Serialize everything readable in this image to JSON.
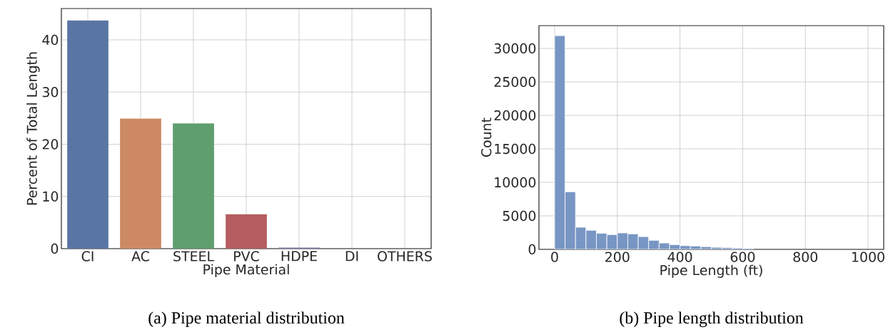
{
  "chart_data": [
    {
      "type": "bar",
      "xlabel": "Pipe Material",
      "ylabel": "Percent of Total Length",
      "categories": [
        "CI",
        "AC",
        "STEEL",
        "PVC",
        "HDPE",
        "DI",
        "OTHERS"
      ],
      "values": [
        43.7,
        24.9,
        24.0,
        6.6,
        0.2,
        null,
        null
      ],
      "colors": [
        "#5975a4",
        "#cc8963",
        "#5f9e6e",
        "#b55d60",
        "#857aab",
        "#8d7866",
        "#d095bf"
      ],
      "ylim": [
        0,
        46
      ],
      "yticks": [
        0,
        10,
        20,
        30,
        40
      ],
      "grid": true,
      "annotations": [
        "(a) Pipe material distribution"
      ]
    },
    {
      "type": "histogram",
      "xlabel": "Pipe Length (ft)",
      "ylabel": "Count",
      "color": "#7896c4",
      "bins": [
        0,
        33.33,
        66.67,
        100,
        133.33,
        166.67,
        200,
        233.33,
        266.67,
        300,
        333.33,
        366.67,
        400,
        433.33,
        466.67,
        500,
        533.33,
        566.67,
        600,
        633.33,
        666.67,
        700,
        733.33,
        766.67,
        800,
        833.33,
        866.67,
        900,
        933.33,
        966.67,
        1000
      ],
      "values": [
        31900,
        8600,
        3300,
        2850,
        2400,
        2200,
        2450,
        2300,
        1900,
        1350,
        950,
        700,
        550,
        500,
        400,
        300,
        250,
        200,
        150,
        null,
        null,
        null,
        null,
        null,
        null,
        null,
        null,
        null,
        null,
        null
      ],
      "xlim": [
        -50,
        1050
      ],
      "ylim": [
        0,
        33400
      ],
      "xticks": [
        0,
        200,
        400,
        600,
        800,
        1000
      ],
      "yticks": [
        0,
        5000,
        10000,
        15000,
        20000,
        25000,
        30000
      ],
      "grid": true,
      "annotations": [
        "(b) Pipe length distribution"
      ]
    }
  ]
}
